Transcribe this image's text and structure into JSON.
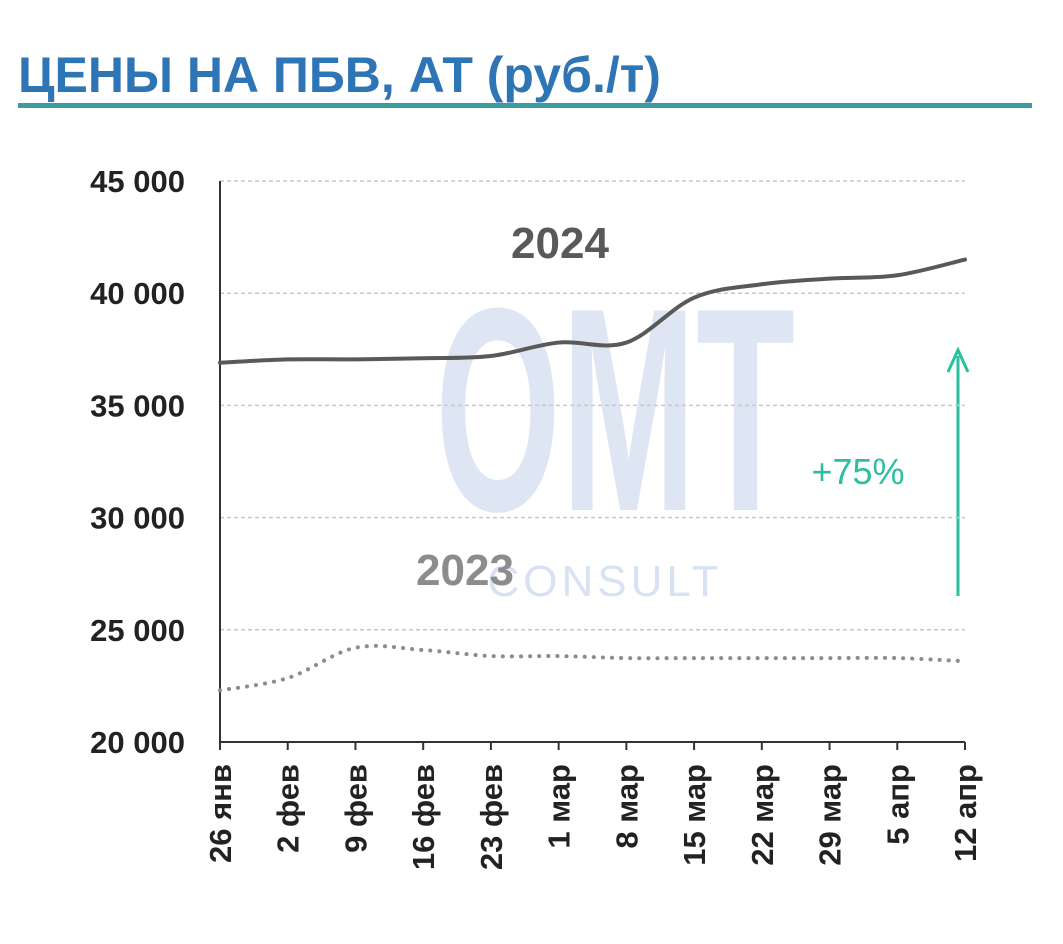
{
  "chart_data": {
    "type": "line",
    "title": "ЦЕНЫ НА ПБВ, АТ (руб./т)",
    "categories": [
      "26 янв",
      "2 фев",
      "9 фев",
      "16 фев",
      "23 фев",
      "1 мар",
      "8 мар",
      "15 мар",
      "22 мар",
      "29 мар",
      "5 апр",
      "12 апр"
    ],
    "series": [
      {
        "name": "2024",
        "color": "#595959",
        "style": "solid",
        "values": [
          36900,
          37050,
          37050,
          37100,
          37200,
          37800,
          37800,
          39800,
          40400,
          40650,
          40800,
          41500
        ]
      },
      {
        "name": "2023",
        "color": "#8c8c8c",
        "style": "dotted",
        "values": [
          22300,
          22850,
          24200,
          24100,
          23830,
          23830,
          23740,
          23740,
          23740,
          23740,
          23740,
          23600
        ]
      }
    ],
    "ylim": [
      20000,
      45000
    ],
    "yticks": [
      {
        "value": 20000,
        "label": "20 000"
      },
      {
        "value": 25000,
        "label": "25 000"
      },
      {
        "value": 30000,
        "label": "30 000"
      },
      {
        "value": 35000,
        "label": "35 000"
      },
      {
        "value": 40000,
        "label": "40 000"
      },
      {
        "value": 45000,
        "label": "45 000"
      }
    ],
    "grid": true,
    "annotation": "+75%",
    "watermark": "OMT",
    "watermark_sub": "CONSULT"
  }
}
